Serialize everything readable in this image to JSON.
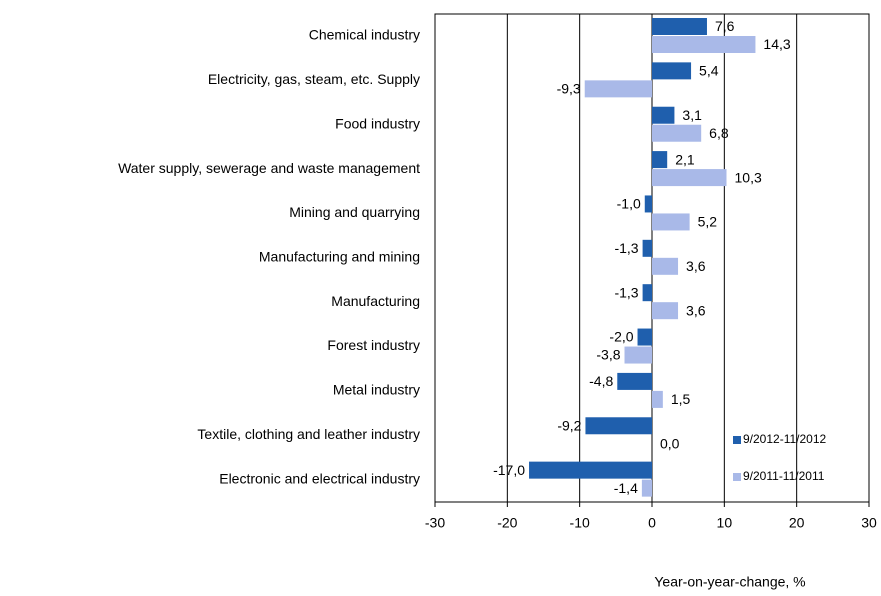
{
  "chart_data": {
    "type": "hbar",
    "x_label": "Year-on-year-change, %",
    "categories": [
      "Chemical industry",
      "Electricity, gas, steam, etc. Supply",
      "Food industry",
      "Water supply, sewerage and waste management",
      "Mining and quarrying",
      "Manufacturing and mining",
      "Manufacturing",
      "Forest industry",
      "Metal industry",
      "Textile, clothing and leather industry",
      "Electronic and electrical industry"
    ],
    "series": [
      {
        "name": "9/2012-11/2012",
        "color": "#1f5fad",
        "values": [
          7.6,
          5.4,
          3.1,
          2.1,
          -1.0,
          -1.3,
          -1.3,
          -2.0,
          -4.8,
          -9.2,
          -17.0
        ],
        "value_labels": [
          "7,6",
          "5,4",
          "3,1",
          "2,1",
          "-1,0",
          "-1,3",
          "-1,3",
          "-2,0",
          "-4,8",
          "-9,2",
          "-17,0"
        ]
      },
      {
        "name": "9/2011-11/2011",
        "color": "#a9b9e8",
        "values": [
          14.3,
          -9.3,
          6.8,
          10.3,
          5.2,
          3.6,
          3.6,
          -3.8,
          1.5,
          0.0,
          -1.4
        ],
        "value_labels": [
          "14,3",
          "-9,3",
          "6,8",
          "10,3",
          "5,2",
          "3,6",
          "3,6",
          "-3,8",
          "1,5",
          "0,0",
          "-1,4"
        ]
      }
    ],
    "xlim": [
      -30,
      30
    ],
    "xticks": [
      -30,
      -20,
      -10,
      0,
      10,
      20,
      30
    ],
    "grid": true,
    "legend": "lower right"
  }
}
